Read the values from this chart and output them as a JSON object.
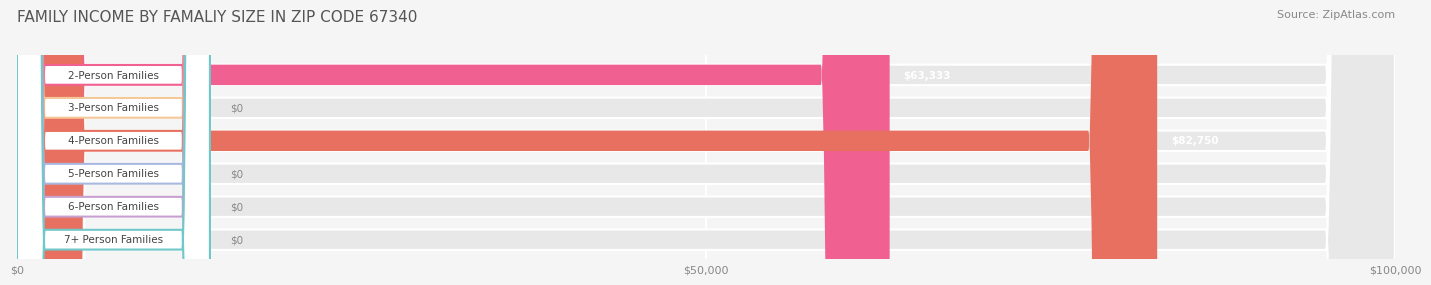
{
  "title": "FAMILY INCOME BY FAMALIY SIZE IN ZIP CODE 67340",
  "source": "Source: ZipAtlas.com",
  "categories": [
    "2-Person Families",
    "3-Person Families",
    "4-Person Families",
    "5-Person Families",
    "6-Person Families",
    "7+ Person Families"
  ],
  "values": [
    63333,
    0,
    82750,
    0,
    0,
    0
  ],
  "bar_colors": [
    "#F06090",
    "#F5C89A",
    "#E87060",
    "#A8B8E0",
    "#C8A0D0",
    "#70C8C8"
  ],
  "label_colors": [
    "#F06090",
    "#F5C89A",
    "#E87060",
    "#A8B8E0",
    "#C8A0D0",
    "#70C8C8"
  ],
  "value_labels": [
    "$63,333",
    "$0",
    "$82,750",
    "$0",
    "$0",
    "$0"
  ],
  "xlim": [
    0,
    100000
  ],
  "xticks": [
    0,
    50000,
    100000
  ],
  "xtick_labels": [
    "$0",
    "$50,000",
    "$100,000"
  ],
  "background_color": "#f5f5f5",
  "bar_background": "#e8e8e8",
  "title_fontsize": 11,
  "source_fontsize": 8
}
